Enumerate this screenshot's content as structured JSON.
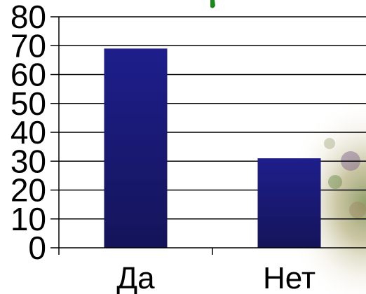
{
  "chart_data": {
    "type": "bar",
    "title": "",
    "xlabel": "",
    "ylabel": "",
    "categories": [
      "Да",
      "Нет"
    ],
    "values": [
      69,
      31
    ],
    "ylim": [
      0,
      80
    ],
    "yticks": [
      0,
      10,
      20,
      30,
      40,
      50,
      60,
      70,
      80
    ],
    "grid": true,
    "legend": "none",
    "colors": {
      "bar_top": "#1e1e8c",
      "bar_bottom": "#14145a",
      "grid": "#000000",
      "title_fragment": "#1a8a1a"
    }
  }
}
